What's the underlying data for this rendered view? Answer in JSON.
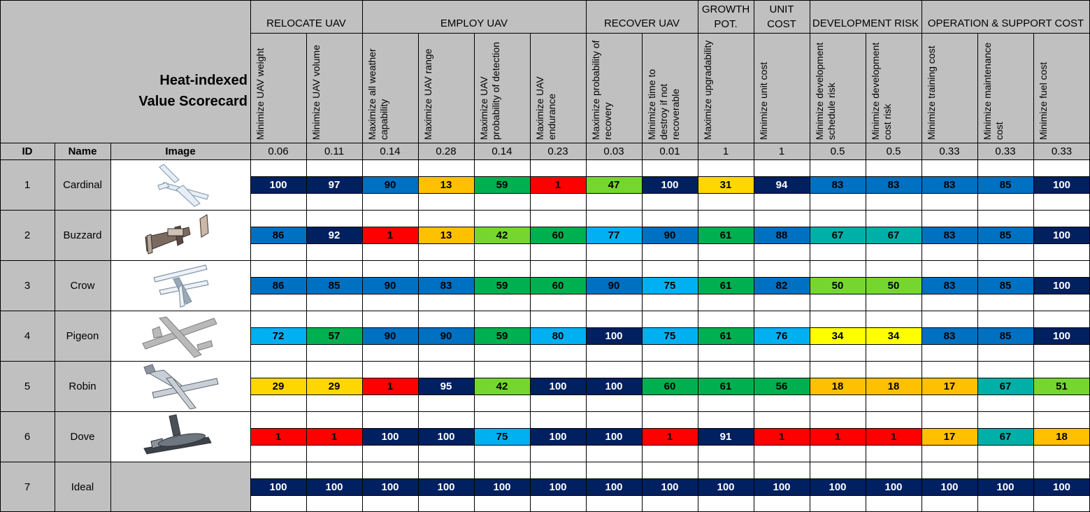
{
  "title_lines": [
    "Heat-indexed",
    "Value Scorecard"
  ],
  "column_headers": {
    "id": "ID",
    "name": "Name",
    "image": "Image"
  },
  "categories": [
    {
      "label": "RELOCATE UAV",
      "span": 2
    },
    {
      "label": "EMPLOY UAV",
      "span": 4
    },
    {
      "label": "RECOVER UAV",
      "span": 2
    },
    {
      "label": "GROWTH POT.",
      "span": 1
    },
    {
      "label": "UNIT COST",
      "span": 1
    },
    {
      "label": "DEVELOPMENT RISK",
      "span": 2
    },
    {
      "label": "OPERATION & SUPPORT COST",
      "span": 3
    }
  ],
  "measures": [
    "Minimize UAV weight",
    "Minimize UAV volume",
    "Maximize all weather capability",
    "Maximize UAV range",
    "Maximize UAV probability of detection",
    "Maximize UAV endurance",
    "Maximize probability of recovery",
    "Minimize time to destroy if not recoverable",
    "Maximize upgradability",
    "Minimize unit cost",
    "Minimize development schedule risk",
    "Minimize development cost risk",
    "Minimize training cost",
    "Minimize maintenance cost",
    "Minimize fuel cost"
  ],
  "weights": [
    "0.06",
    "0.11",
    "0.14",
    "0.28",
    "0.14",
    "0.23",
    "0.03",
    "0.01",
    "1",
    "1",
    "0.5",
    "0.5",
    "0.33",
    "0.33",
    "0.33"
  ],
  "rows": [
    {
      "id": "1",
      "name": "Cardinal",
      "icon": "cardinal-uav-icon",
      "scores": [
        100,
        97,
        90,
        13,
        59,
        1,
        47,
        100,
        31,
        94,
        83,
        83,
        83,
        85,
        100
      ]
    },
    {
      "id": "2",
      "name": "Buzzard",
      "icon": "buzzard-uav-icon",
      "scores": [
        86,
        92,
        1,
        13,
        42,
        60,
        77,
        90,
        61,
        88,
        67,
        67,
        83,
        85,
        100
      ]
    },
    {
      "id": "3",
      "name": "Crow",
      "icon": "crow-uav-icon",
      "scores": [
        86,
        85,
        90,
        83,
        59,
        60,
        90,
        75,
        61,
        82,
        50,
        50,
        83,
        85,
        100
      ]
    },
    {
      "id": "4",
      "name": "Pigeon",
      "icon": "pigeon-uav-icon",
      "scores": [
        72,
        57,
        90,
        90,
        59,
        80,
        100,
        75,
        61,
        76,
        34,
        34,
        83,
        85,
        100
      ]
    },
    {
      "id": "5",
      "name": "Robin",
      "icon": "robin-uav-icon",
      "scores": [
        29,
        29,
        1,
        95,
        42,
        100,
        100,
        60,
        61,
        56,
        18,
        18,
        17,
        67,
        51
      ]
    },
    {
      "id": "6",
      "name": "Dove",
      "icon": "dove-uav-icon",
      "scores": [
        1,
        1,
        100,
        100,
        75,
        100,
        100,
        1,
        91,
        1,
        1,
        1,
        17,
        67,
        18
      ]
    },
    {
      "id": "7",
      "name": "Ideal",
      "icon": "",
      "scores": [
        100,
        100,
        100,
        100,
        100,
        100,
        100,
        100,
        100,
        100,
        100,
        100,
        100,
        100,
        100
      ]
    }
  ],
  "colors": {
    "navy": "#002060",
    "blue": "#0070c0",
    "light_blue": "#00b0f0",
    "teal": "#00b0a8",
    "dark_green": "#00b050",
    "light_green": "#76d630",
    "yellow": "#ffff00",
    "gold": "#ffd700",
    "orange": "#ffc000",
    "red": "#ff0000",
    "header_gray": "#c0c0c0"
  }
}
